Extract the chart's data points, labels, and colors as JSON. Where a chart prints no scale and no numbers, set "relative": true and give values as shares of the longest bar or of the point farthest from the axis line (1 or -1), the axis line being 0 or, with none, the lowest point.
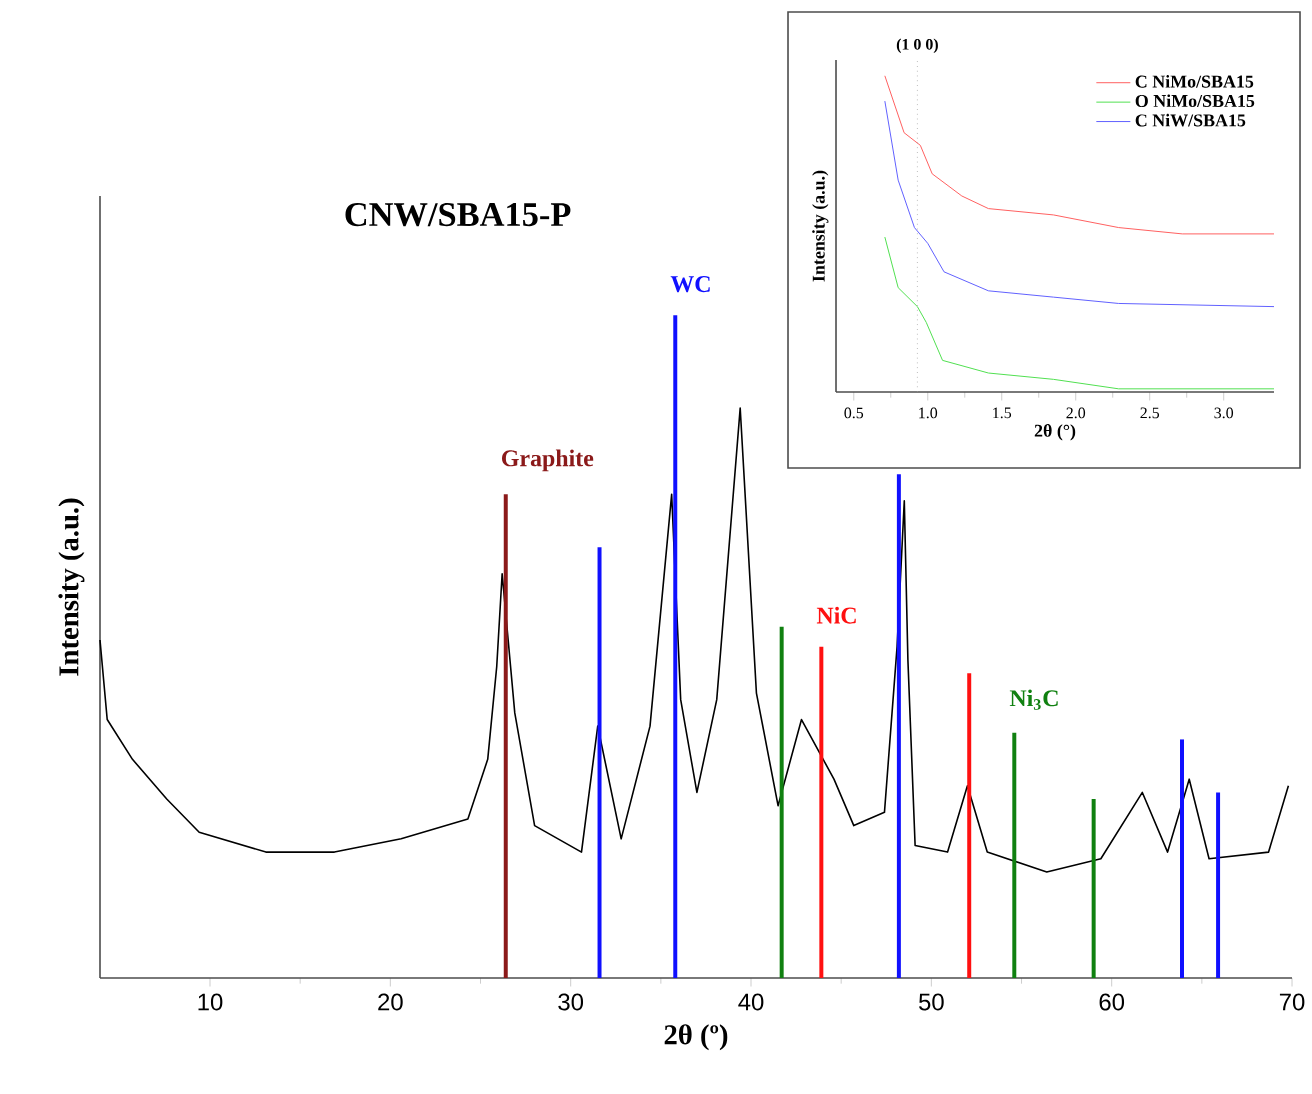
{
  "chart_data": [
    {
      "type": "line",
      "title": "CNW/SBA15-P",
      "xlabel": "2θ (º)",
      "ylabel": "Intensity (a.u.)",
      "relative": true,
      "xlim": [
        3.9,
        70
      ],
      "xticks": [
        10,
        20,
        30,
        40,
        50,
        60,
        70
      ],
      "series": [
        {
          "type": "line",
          "color": "#000000",
          "x": [
            3.9,
            4.3,
            5.7,
            7.6,
            9.4,
            13.1,
            16.9,
            20.6,
            24.3,
            25.4,
            25.9,
            26.2,
            26.9,
            28.0,
            30.6,
            31.5,
            32.8,
            34.4,
            35.6,
            36.1,
            37.0,
            38.1,
            39.4,
            40.3,
            41.5,
            42.8,
            44.6,
            45.7,
            47.4,
            48.1,
            48.5,
            48.7,
            49.1,
            50.9,
            52.0,
            53.1,
            56.4,
            59.4,
            61.7,
            63.1,
            64.3,
            65.4,
            68.7,
            69.8
          ],
          "values": [
            0.51,
            0.39,
            0.33,
            0.27,
            0.22,
            0.19,
            0.19,
            0.21,
            0.24,
            0.33,
            0.47,
            0.61,
            0.4,
            0.23,
            0.19,
            0.38,
            0.21,
            0.38,
            0.73,
            0.42,
            0.28,
            0.42,
            0.86,
            0.43,
            0.26,
            0.39,
            0.3,
            0.23,
            0.25,
            0.5,
            0.72,
            0.48,
            0.2,
            0.19,
            0.29,
            0.19,
            0.16,
            0.18,
            0.28,
            0.19,
            0.3,
            0.18,
            0.19,
            0.29
          ]
        },
        {
          "type": "bar",
          "color": "#8b1a1a",
          "x": [
            26.4
          ],
          "values": [
            0.73
          ]
        },
        {
          "type": "bar",
          "color": "#1010ff",
          "x": [
            31.6,
            35.8,
            48.2,
            63.9,
            65.9
          ],
          "values": [
            0.65,
            1.0,
            0.76,
            0.36,
            0.28
          ]
        },
        {
          "type": "bar",
          "color": "#ff1010",
          "x": [
            43.9,
            52.1
          ],
          "values": [
            0.5,
            0.46
          ]
        },
        {
          "type": "bar",
          "color": "#108010",
          "x": [
            41.7,
            54.6,
            59.0
          ],
          "values": [
            0.53,
            0.37,
            0.27
          ]
        }
      ],
      "annotations": [
        {
          "text": "Graphite",
          "x": 26.4,
          "y": 0.73
        },
        {
          "text": "WC",
          "x": 35.8,
          "y": 1.0
        },
        {
          "text": "NiC",
          "x": 43.9,
          "y": 0.5
        },
        {
          "text": "Ni$_{3}$C",
          "x": 54.6,
          "y": 0.37
        }
      ]
    },
    {
      "type": "line",
      "xlabel": "2θ (°)",
      "ylabel": "Intensity (a.u.)",
      "relative": true,
      "xlim": [
        0.38,
        3.34
      ],
      "xticks": [
        0.5,
        {
          "value": 1,
          "label": "1.0"
        },
        1.5,
        {
          "value": 2,
          "label": "2.0"
        },
        2.5,
        {
          "value": 3,
          "label": "3.0"
        }
      ],
      "legend": "top right",
      "ref_lines": [
        {
          "axis": "x",
          "value": 0.93,
          "label": "(1 0 0)",
          "color": "#999999",
          "line_style": "dotted"
        }
      ],
      "series": [
        {
          "name": "C NiMo/SBA15",
          "color": "#ff6060",
          "x": [
            0.71,
            0.84,
            0.95,
            1.03,
            1.23,
            1.41,
            1.85,
            2.29,
            2.72,
            3.34
          ],
          "values": [
            1.0,
            0.82,
            0.78,
            0.69,
            0.62,
            0.58,
            0.56,
            0.52,
            0.5,
            0.5
          ]
        },
        {
          "name": "O NiMo/SBA15",
          "color": "#50e050",
          "x": [
            0.71,
            0.8,
            0.93,
            0.99,
            1.1,
            1.41,
            1.85,
            2.29,
            3.34
          ],
          "values": [
            0.49,
            0.33,
            0.27,
            0.22,
            0.1,
            0.06,
            0.04,
            0.01,
            0.01
          ]
        },
        {
          "name": "C NiW/SBA15",
          "color": "#6060ff",
          "x": [
            0.71,
            0.8,
            0.91,
            1.0,
            1.11,
            1.41,
            1.85,
            2.29,
            3.34
          ],
          "values": [
            0.92,
            0.67,
            0.52,
            0.47,
            0.38,
            0.32,
            0.3,
            0.28,
            0.27
          ]
        }
      ]
    }
  ]
}
